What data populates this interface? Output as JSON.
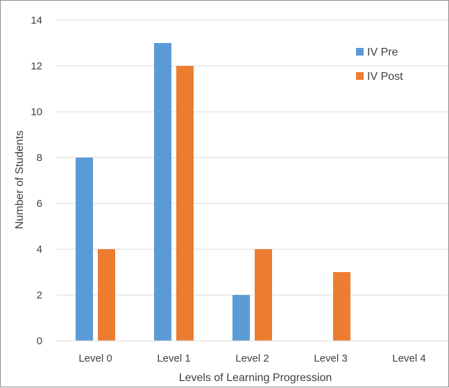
{
  "chart_data": {
    "type": "bar",
    "title": "",
    "xlabel": "Levels of Learning Progression",
    "ylabel": "Number of Students",
    "categories": [
      "Level 0",
      "Level 1",
      "Level 2",
      "Level 3",
      "Level 4"
    ],
    "series": [
      {
        "name": "IV Pre",
        "values": [
          8,
          13,
          2,
          0,
          0
        ],
        "color": "#5b9bd5"
      },
      {
        "name": "IV Post",
        "values": [
          4,
          12,
          4,
          3,
          0
        ],
        "color": "#ed7d31"
      }
    ],
    "ylim": [
      0,
      14
    ],
    "yticks": [
      0,
      2,
      4,
      6,
      8,
      10,
      12,
      14
    ],
    "grid": true,
    "legend_position": "top-right",
    "gridline_color": "#d9d9d9"
  }
}
